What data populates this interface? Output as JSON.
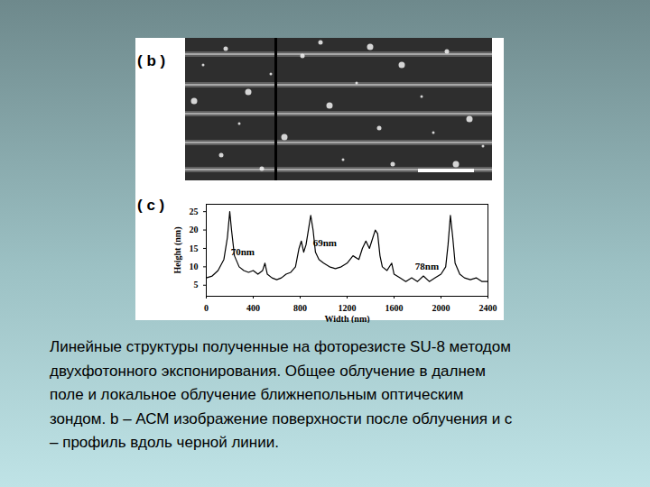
{
  "panel_b_label": "( b )",
  "panel_c_label": "( c )",
  "caption": [
    "Линейные структуры полученные на фоторезисте SU-8 методом",
    "двухфотонного экспонирования. Общее облучение в далнем",
    "поле и локальное облучение ближнепольным оптическим",
    "зондом. b – АСМ изображение поверхности после облучения и c",
    "– профиль вдоль черной линии."
  ],
  "chart_data": {
    "type": "line",
    "xlabel": "Width (nm)",
    "ylabel": "Height (nm)",
    "x": [
      0,
      50,
      100,
      150,
      180,
      200,
      215,
      240,
      280,
      320,
      360,
      400,
      440,
      480,
      500,
      520,
      560,
      600,
      640,
      680,
      720,
      760,
      790,
      810,
      830,
      850,
      870,
      890,
      910,
      930,
      960,
      1000,
      1050,
      1100,
      1150,
      1200,
      1250,
      1300,
      1330,
      1360,
      1390,
      1420,
      1440,
      1460,
      1480,
      1500,
      1540,
      1580,
      1600,
      1650,
      1700,
      1750,
      1800,
      1850,
      1900,
      1950,
      2000,
      2040,
      2060,
      2080,
      2100,
      2120,
      2160,
      2200,
      2250,
      2300,
      2350,
      2400
    ],
    "values": [
      7,
      7.5,
      9,
      12,
      18,
      25,
      20,
      13,
      10,
      9,
      8.5,
      9,
      8,
      9,
      11,
      8,
      7,
      6.5,
      7,
      8,
      8.5,
      10,
      15,
      17,
      14,
      16,
      20,
      24,
      20,
      14,
      12,
      11,
      10,
      9.5,
      10,
      11,
      13,
      12,
      15,
      17,
      15,
      18,
      20,
      19,
      13,
      10,
      9,
      11,
      8,
      7,
      6,
      7,
      6,
      7.5,
      6,
      7,
      8,
      10,
      16,
      24,
      18,
      11,
      8,
      7,
      6.5,
      7,
      6,
      6
    ],
    "color": "#000000",
    "xlim": [
      0,
      2400
    ],
    "xticks": [
      0,
      400,
      800,
      1200,
      1600,
      2000,
      2400
    ],
    "ylim": [
      2,
      27
    ],
    "yticks": [
      5,
      10,
      15,
      20,
      25
    ],
    "annotations": [
      {
        "text": "70nm",
        "x": 310,
        "y": 14
      },
      {
        "text": "69nm",
        "x": 1010,
        "y": 16.5
      },
      {
        "text": "78nm",
        "x": 1880,
        "y": 10
      }
    ]
  }
}
